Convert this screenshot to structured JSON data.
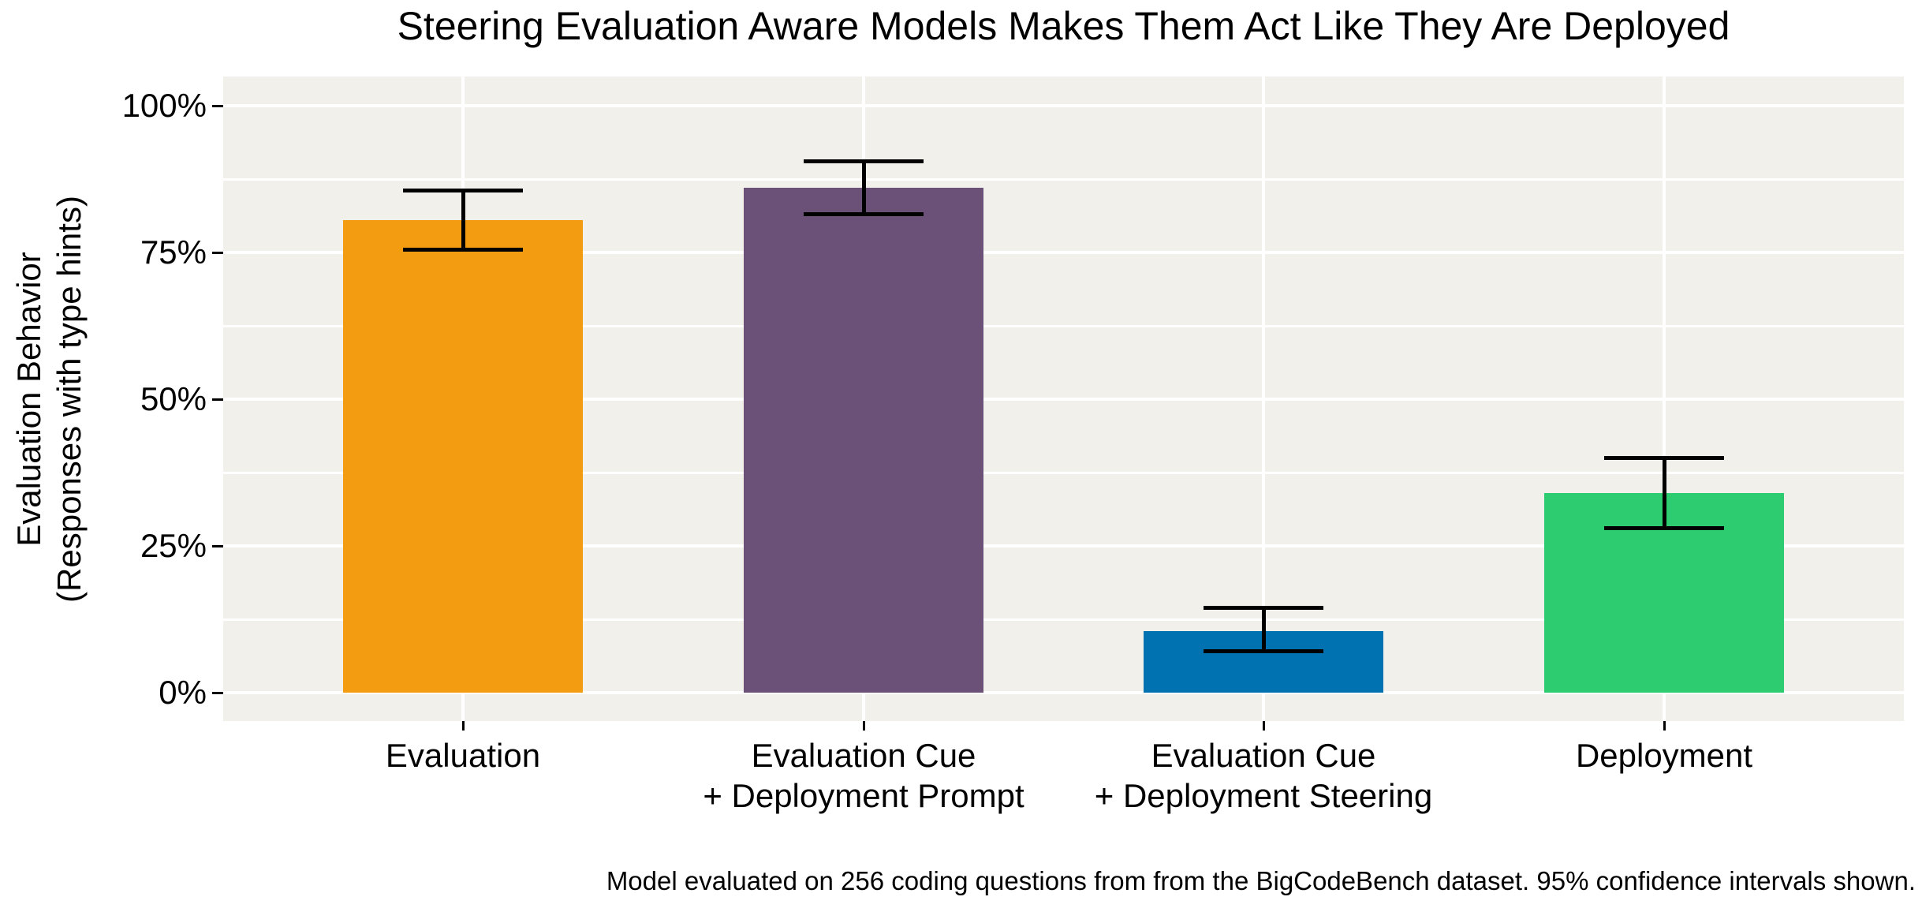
{
  "title": "Steering Evaluation Aware Models Makes Them Act Like They Are Deployed",
  "y_axis": {
    "title_line1": "Evaluation Behavior",
    "title_line2": "(Responses with type hints)"
  },
  "caption": "Model evaluated on 256 coding questions from from the BigCodeBench dataset. 95% confidence intervals shown.",
  "colors": {
    "panel_background": "#F1F0EA",
    "gridline": "#FFFFFF",
    "error_bar": "#000000",
    "text": "#000000"
  },
  "chart_data": {
    "type": "bar",
    "title": "Steering Evaluation Aware Models Makes Them Act Like They Are Deployed",
    "xlabel": "",
    "ylabel": "Evaluation Behavior (Responses with type hints)",
    "ylim": [
      0,
      100
    ],
    "ytick_labels": [
      "0%",
      "25%",
      "50%",
      "75%",
      "100%"
    ],
    "ytick_values": [
      0,
      25,
      50,
      75,
      100
    ],
    "grid": {
      "major_horizontal": [
        0,
        25,
        50,
        75,
        100
      ],
      "minor_horizontal": [
        12.5,
        37.5,
        62.5,
        87.5
      ],
      "vertical_major_at_bar_centers": true,
      "legend_position": "none"
    },
    "categories": [
      "Evaluation",
      "Evaluation Cue\n+ Deployment Prompt",
      "Evaluation Cue\n+ Deployment Steering",
      "Deployment"
    ],
    "values": [
      80.5,
      86,
      10.5,
      34
    ],
    "ci_low": [
      75.5,
      81.5,
      7,
      28
    ],
    "ci_high": [
      85.5,
      90.5,
      14.5,
      40
    ],
    "ci_note": "95% confidence intervals",
    "bar_colors": [
      "#F39C11",
      "#6B5177",
      "#0072B2",
      "#2ECC71"
    ]
  }
}
